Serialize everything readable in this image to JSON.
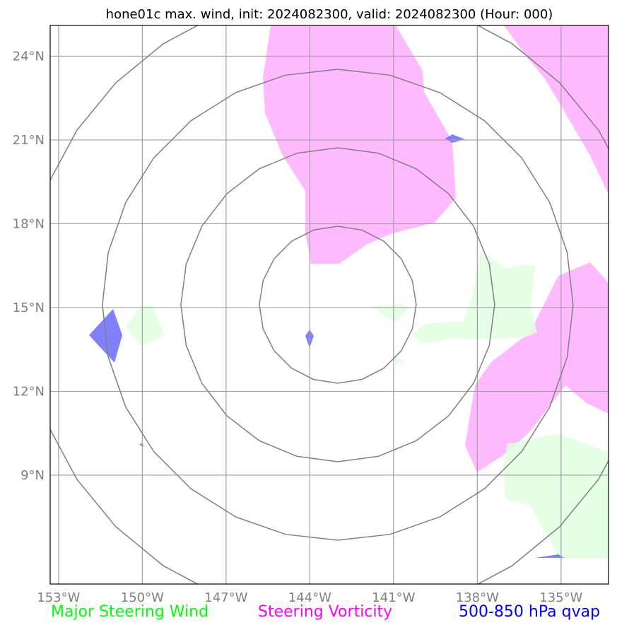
{
  "title": "hone01c max. wind, init: 2024082300, valid: 2024082300 (Hour: 000)",
  "map": {
    "lat_labels": [
      "24°N",
      "21°N",
      "18°N",
      "15°N",
      "12°N",
      "9°N"
    ],
    "lon_labels": [
      "153°W",
      "150°W",
      "147°W",
      "144°W",
      "141°W",
      "138°W",
      "135°W"
    ],
    "lat_values": [
      24,
      21,
      18,
      15,
      12,
      9
    ],
    "lon_values": [
      -153,
      -150,
      -147,
      -144,
      -141,
      -138,
      -135
    ],
    "lon_range": [
      -153.3,
      -133.3
    ],
    "lat_range": [
      5.1,
      25.1
    ],
    "range_rings": 4,
    "storm_center": {
      "lat": 15.1,
      "lon": -143
    },
    "colors": {
      "gridline": "#a0a0a0",
      "ring": "#808080",
      "steering_wind": "#c8ffc8",
      "steering_vorticity": "#ff66ff",
      "qvap": "#0000ff"
    }
  },
  "legend": {
    "wind": {
      "label": "Major Steering Wind",
      "color": "#00ff00"
    },
    "vorticity": {
      "label": "Steering Vorticity",
      "color": "#ff00ff"
    },
    "qvap": {
      "label": "500-850 hPa qvap",
      "color": "#0000ff"
    }
  }
}
